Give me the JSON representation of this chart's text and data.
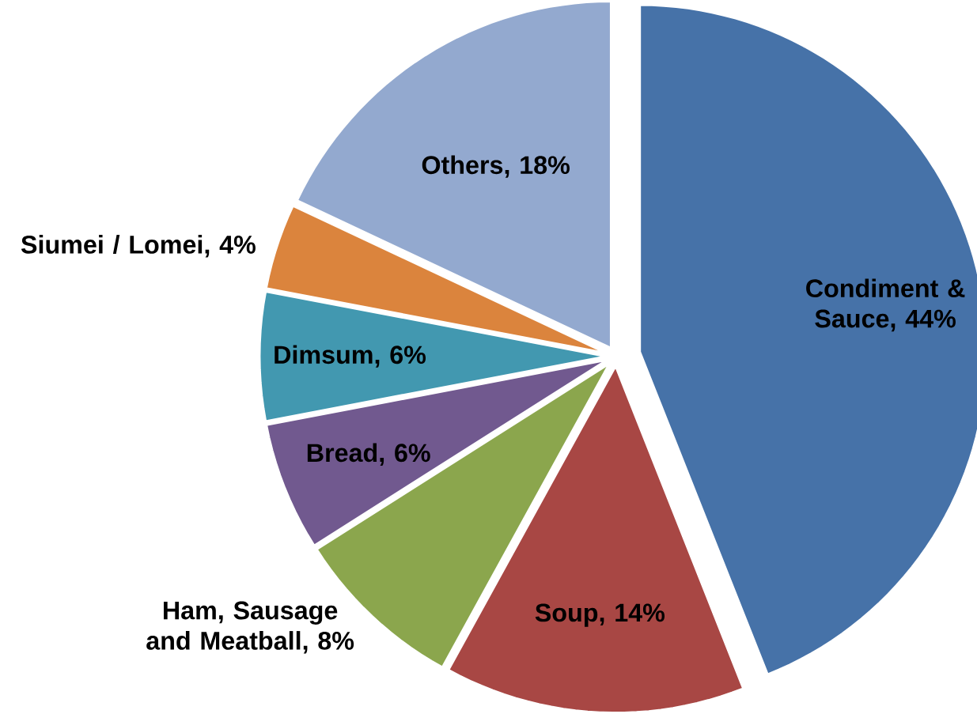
{
  "chart_data": {
    "type": "pie",
    "categories": [
      "Condiment & Sauce, 44%",
      "Soup, 14%",
      "Ham, Sausage and Meatball, 8%",
      "Bread, 6%",
      "Dimsum, 6%",
      "Siumei / Lomei, 4%",
      "Others, 18%"
    ],
    "values": [
      44,
      14,
      8,
      6,
      6,
      4,
      18
    ],
    "colors": [
      "#4672a8",
      "#a84744",
      "#8ba64d",
      "#71598f",
      "#4298b0",
      "#db843d",
      "#93a9cf"
    ]
  }
}
